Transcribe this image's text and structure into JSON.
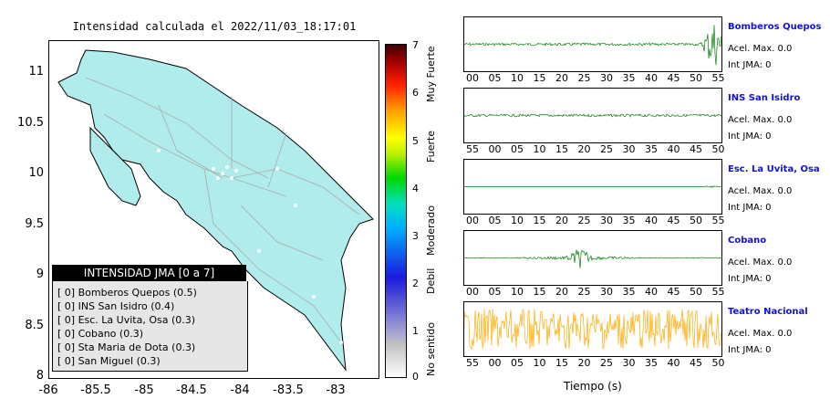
{
  "map": {
    "title": "Intensidad calculada el 2022/11/03_18:17:01",
    "y_ticks": [
      "11",
      "10.5",
      "10",
      "9.5",
      "9",
      "8.5",
      "8"
    ],
    "x_ticks": [
      "-86",
      "-85.5",
      "-85",
      "-84.5",
      "-84",
      "-83.5",
      "-83"
    ],
    "legend_title": "INTENSIDAD JMA [0 a 7]",
    "legend_items": [
      "[ 0]  Bomberos Quepos (0.5)",
      "[ 0]  INS San Isidro (0.4)",
      "[ 0]  Esc. La Uvita, Osa (0.3)",
      "[ 0]  Cobano (0.3)",
      "[ 0]  Sta Maria de Dota (0.3)",
      "[ 0]  San Miguel (0.3)"
    ],
    "colorbar_ticks": [
      "7",
      "6",
      "5",
      "4",
      "3",
      "2",
      "1",
      "0"
    ],
    "colorbar_labels": [
      "Muy Fuerte",
      "Fuerte",
      "Moderado",
      "Debil",
      "No sentido"
    ]
  },
  "traces": {
    "xlabel": "Tiempo (s)",
    "items": [
      {
        "name": "Bomberos Quepos",
        "acel": "Acel. Max. 0.0",
        "jma": "Int JMA: 0",
        "color": "#0a7d0a",
        "ticks": [
          "00",
          "05",
          "10",
          "15",
          "20",
          "25",
          "30",
          "35",
          "40",
          "45",
          "50",
          "55"
        ],
        "burst": 0.97,
        "amp": 0.6
      },
      {
        "name": "INS San Isidro",
        "acel": "Acel. Max. 0.0",
        "jma": "Int JMA: 0",
        "color": "#0a7d0a",
        "ticks": [
          "55",
          "00",
          "05",
          "10",
          "15",
          "20",
          "25",
          "30",
          "35",
          "40",
          "45",
          "50"
        ],
        "burst": -1,
        "amp": 0.05
      },
      {
        "name": "Esc. La Uvita, Osa",
        "acel": "Acel. Max. 0.0",
        "jma": "Int JMA: 0",
        "color": "#0a7d0a",
        "ticks": [
          "00",
          "05",
          "10",
          "15",
          "20",
          "25",
          "30",
          "35",
          "40",
          "45",
          "50",
          "55"
        ],
        "burst": 0.96,
        "amp": 0.02
      },
      {
        "name": "Cobano",
        "acel": "Acel. Max. 0.0",
        "jma": "Int JMA: 0",
        "color": "#0a7d0a",
        "ticks": [
          "00",
          "05",
          "10",
          "15",
          "20",
          "25",
          "30",
          "35",
          "40",
          "45",
          "50",
          "55"
        ],
        "burst": 0.45,
        "amp": 0.2
      },
      {
        "name": "Teatro Nacional",
        "acel": "Acel. Max. 0.0",
        "jma": "Int JMA: 0",
        "color": "#ffaa00",
        "ticks": [
          "55",
          "00",
          "05",
          "10",
          "15",
          "20",
          "25",
          "30",
          "35",
          "40",
          "45",
          "50"
        ],
        "burst": -1,
        "amp": 0.75
      }
    ]
  },
  "chart_data": {
    "type": "line",
    "title": "Intensidad calculada el 2022/11/03_18:17:01",
    "xlabel": "Tiempo (s)",
    "ylabel": "",
    "series": [
      {
        "name": "Bomberos Quepos",
        "jma": 0,
        "acel_max": 0.0
      },
      {
        "name": "INS San Isidro",
        "jma": 0,
        "acel_max": 0.0
      },
      {
        "name": "Esc. La Uvita, Osa",
        "jma": 0,
        "acel_max": 0.0
      },
      {
        "name": "Cobano",
        "jma": 0,
        "acel_max": 0.0
      },
      {
        "name": "Teatro Nacional",
        "jma": 0,
        "acel_max": 0.0
      }
    ],
    "intensity_table": [
      {
        "station": "Bomberos Quepos",
        "value": 0.5,
        "class": 0
      },
      {
        "station": "INS San Isidro",
        "value": 0.4,
        "class": 0
      },
      {
        "station": "Esc. La Uvita, Osa",
        "value": 0.3,
        "class": 0
      },
      {
        "station": "Cobano",
        "value": 0.3,
        "class": 0
      },
      {
        "station": "Sta Maria de Dota",
        "value": 0.3,
        "class": 0
      },
      {
        "station": "San Miguel",
        "value": 0.3,
        "class": 0
      }
    ],
    "map_xlim": [
      -86,
      -82.6
    ],
    "map_ylim": [
      8,
      11.3
    ],
    "colorbar_range": [
      0,
      7
    ]
  }
}
